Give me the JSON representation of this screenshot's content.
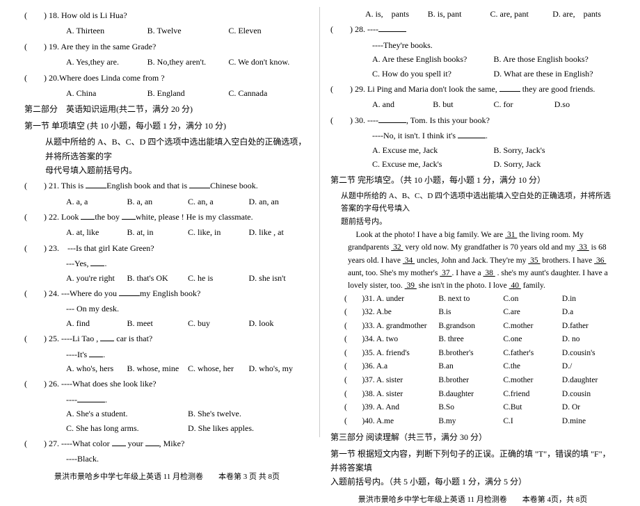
{
  "left": {
    "q18_text": ") 18. How old is Li Hua?",
    "q18_a": "A. Thirteen",
    "q18_b": "B. Twelve",
    "q18_c": "C. Eleven",
    "q19_text": ") 19. Are they in the same Grade?",
    "q19_a": "A. Yes,they are.",
    "q19_b": "B. No,they aren't.",
    "q19_c": "C. We don't know.",
    "q20_text": ") 20.Where does Linda come from ?",
    "q20_a": "A. China",
    "q20_b": "B. England",
    "q20_c": "C. Cannada",
    "part2_hdr": "第二部分　英语知识运用(共二节，满分 20 分)",
    "sec1_hdr": "第一节  单项填空 (共 10 小题，每小题 1 分，满分 10 分)",
    "sec1_instr1": "从题中所给的 A、B、C、D 四个选项中选出能填入空白处的正确选项，并将所选答案的字",
    "sec1_instr2": "母代号填入题前括号内。",
    "q21_pre": ") 21. This is ",
    "q21_mid": "English book and that is ",
    "q21_post": "Chinese book.",
    "q21_a": "A. a, a",
    "q21_b": "B. a, an",
    "q21_c": "C. an, a",
    "q21_d": "D. an, an",
    "q22_pre": ") 22. Look ",
    "q22_mid": "the boy ",
    "q22_post": "white, please ! He is my classmate.",
    "q22_a": "A. at, like",
    "q22_b": "B. at, in",
    "q22_c": "C. like, in",
    "q22_d": "D. like , at",
    "q23_text": ") 23.　---Is that girl Kate Green?",
    "q23_line2": "---Yes, ",
    "q23_a": "A. you're right",
    "q23_b": "B. that's OK",
    "q23_c": "C. he is",
    "q23_d": "D. she isn't",
    "q24_pre": ") 24. ---Where do you ",
    "q24_post": "my English book?",
    "q24_line2": "--- On my desk.",
    "q24_a": "A. find",
    "q24_b": "B. meet",
    "q24_c": "C. buy",
    "q24_d": "D. look",
    "q25_pre": ") 25. ----Li Tao , ",
    "q25_post": " car is that?",
    "q25_line2": "----It's ",
    "q25_a": "A. who's, hers",
    "q25_b": "B. whose, mine",
    "q25_c": "C. whose, her",
    "q25_d": "D. who's, my",
    "q26_text": ") 26. ----What does she look like?",
    "q26_line2": "----",
    "q26_a": "A. She's a student.",
    "q26_b": "B. She's twelve.",
    "q26_c": "C. She has long arms.",
    "q26_d": "D. She likes apples.",
    "q27_pre": ") 27. ----What color ",
    "q27_mid": " your ",
    "q27_post": ", Mike?",
    "q27_line2": "----Black.",
    "footer": "景洪市景哈乡中学七年级上英语 11 月检测卷　　本卷第 3 页 共 8页"
  },
  "right": {
    "topA": "A. is,　pants",
    "topB": "B. is, pant",
    "topC": "C. are, pant",
    "topD": "D. are,　pants",
    "q28_text": ") 28. ----",
    "q28_line2": "----They're books.",
    "q28_a": "A. Are these English books?",
    "q28_b": "B. Are those English books?",
    "q28_c": "C. How do you spell it?",
    "q28_d": "D. What are these in English?",
    "q29_pre": ") 29. Li Ping and Maria don't look the same, ",
    "q29_post": " they are good friends.",
    "q29_a": "A. and",
    "q29_b": "B. but",
    "q29_c": "C. for",
    "q29_d": "D.so",
    "q30_pre": ") 30. ----",
    "q30_post": ", Tom. Is this your book?",
    "q30_line2": "----No, it isn't. I think it's ",
    "q30_a": "A. Excuse me, Jack",
    "q30_b": "B. Sorry, Jack's",
    "q30_c": "C. Excuse me, Jack's",
    "q30_d": "D. Sorry, Jack",
    "sec2_hdr": "第二节  完形填空。（共 10 小题，每小题 1 分，满分 10 分）",
    "sec2_instr1": "从题中所给的 A、B、C、D 四个选项中选出能填入空白处的正确选项，并将所选答案的字母代号填入",
    "sec2_instr2": "题前括号内。",
    "passage": "Look at the photo! I have a big family. We are  31  the living room. My grandparents  32  very old now. My grandfather is 70 years old and my   33   is 68 years old. I have  34   uncles, John and Jack. They're my   35   brothers. I have  36   aunt, too. She's my mother's   37 . I have a   38  . she's my aunt's daughter. I have a lovely sister, too.   39   she isn't in the photo. I love  40  family.",
    "opts": [
      [
        ")31. A. under",
        "B. next to",
        "C.on",
        "D.in"
      ],
      [
        ")32. A.be",
        "B.is",
        "C.are",
        "D.a"
      ],
      [
        ")33. A. grandmother",
        "B.grandson",
        "C.mother",
        "D.father"
      ],
      [
        ")34. A. two",
        "B. three",
        "C.one",
        "D. no"
      ],
      [
        ")35. A. friend's",
        "B.brother's",
        "C.father's",
        "D.cousin's"
      ],
      [
        ")36. A.a",
        "B.an",
        "C.the",
        "D./"
      ],
      [
        ")37. A. sister",
        "B.brother",
        "C.mother",
        "D.daughter"
      ],
      [
        ")38. A. sister",
        "B.daughter",
        "C.friend",
        "D.cousin"
      ],
      [
        ")39. A. And",
        "B.So",
        "C.But",
        "D. Or"
      ],
      [
        ")40. A.me",
        "B.my",
        "C.I",
        "D.mine"
      ]
    ],
    "part3_hdr": "第三部分  阅读理解（共三节，满分 30 分）",
    "part3_sec1a": "第一节  根据短文内容，判断下列句子的正误。正确的填 \"T\"，错误的填 \"F\"，并将答案填",
    "part3_sec1b": "入题前括号内。（共 5 小题，每小题 1 分，满分 5 分）",
    "footer": "景洪市景哈乡中学七年级上英语 11 月检测卷　　本卷第 4页，共 8页"
  }
}
